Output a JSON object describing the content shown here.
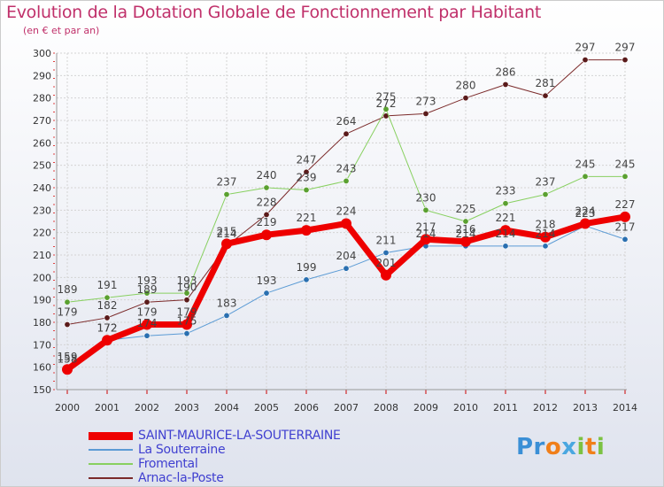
{
  "title": "Evolution de la Dotation Globale de Fonctionnement par Habitant",
  "subtitle": "(en € et par an)",
  "logo": {
    "parts": [
      "Pr",
      "o",
      "x",
      "i",
      "t",
      "i"
    ],
    "colors": [
      "#3a8fd6",
      "#f07f1a",
      "#4aa7e0",
      "#7cc242",
      "#f07f1a",
      "#7cc242"
    ]
  },
  "chart_data": {
    "type": "line",
    "title": "Evolution de la Dotation Globale de Fonctionnement par Habitant",
    "ylabel": "(en € et par an)",
    "x": [
      2000,
      2001,
      2002,
      2003,
      2004,
      2005,
      2006,
      2007,
      2008,
      2009,
      2010,
      2011,
      2012,
      2013,
      2014
    ],
    "ylim": [
      150,
      300
    ],
    "yticks": [
      150,
      160,
      170,
      180,
      190,
      200,
      210,
      220,
      230,
      240,
      250,
      260,
      270,
      280,
      290,
      300
    ],
    "series": [
      {
        "name": "SAINT-MAURICE-LA-SOUTERRAINE",
        "color": "#ee0000",
        "width": 7,
        "values": [
          159,
          172,
          179,
          179,
          215,
          219,
          221,
          224,
          201,
          217,
          216,
          221,
          218,
          224,
          227
        ]
      },
      {
        "name": "La Souterraine",
        "color": "#5b9bd5",
        "width": 1,
        "values": [
          158,
          172,
          174,
          175,
          183,
          193,
          199,
          204,
          211,
          214,
          214,
          214,
          214,
          223,
          217
        ]
      },
      {
        "name": "Fromental",
        "color": "#88d060",
        "width": 1,
        "values": [
          189,
          191,
          193,
          193,
          237,
          240,
          239,
          243,
          275,
          230,
          225,
          233,
          237,
          245,
          245
        ]
      },
      {
        "name": "Arnac-la-Poste",
        "color": "#7b2a2a",
        "width": 1,
        "values": [
          179,
          182,
          189,
          190,
          214,
          228,
          247,
          264,
          272,
          273,
          280,
          286,
          281,
          297,
          297
        ]
      }
    ]
  }
}
